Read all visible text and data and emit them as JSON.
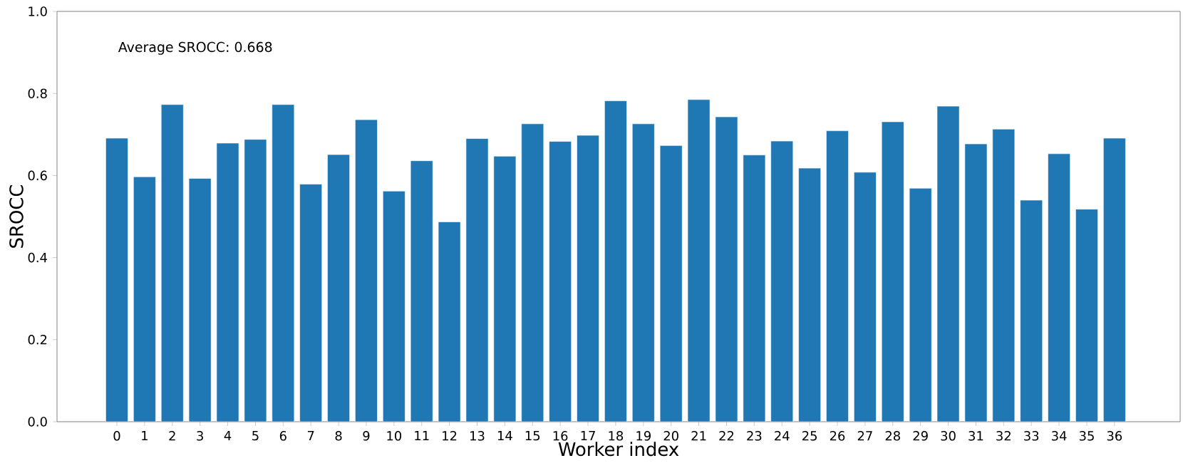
{
  "chart_data": {
    "type": "bar",
    "xlabel": "Worker index",
    "ylabel": "SROCC",
    "categories": [
      "0",
      "1",
      "2",
      "3",
      "4",
      "5",
      "6",
      "7",
      "8",
      "9",
      "10",
      "11",
      "12",
      "13",
      "14",
      "15",
      "16",
      "17",
      "18",
      "19",
      "20",
      "21",
      "22",
      "23",
      "24",
      "25",
      "26",
      "27",
      "28",
      "29",
      "30",
      "31",
      "32",
      "33",
      "34",
      "35",
      "36"
    ],
    "values": [
      0.691,
      0.597,
      0.773,
      0.593,
      0.679,
      0.688,
      0.773,
      0.579,
      0.651,
      0.736,
      0.562,
      0.636,
      0.487,
      0.69,
      0.647,
      0.726,
      0.683,
      0.698,
      0.782,
      0.726,
      0.673,
      0.785,
      0.743,
      0.65,
      0.684,
      0.618,
      0.709,
      0.608,
      0.731,
      0.569,
      0.769,
      0.677,
      0.713,
      0.54,
      0.653,
      0.518,
      0.691
    ],
    "color": "#1f77b4",
    "ylim": [
      0,
      1
    ],
    "yticks": [
      {
        "value": 0,
        "label": "0.0"
      },
      0.2,
      0.4,
      0.6,
      0.8,
      {
        "value": 1,
        "label": "1.0"
      }
    ],
    "annotations": [
      "Average SROCC: 0.668"
    ]
  }
}
